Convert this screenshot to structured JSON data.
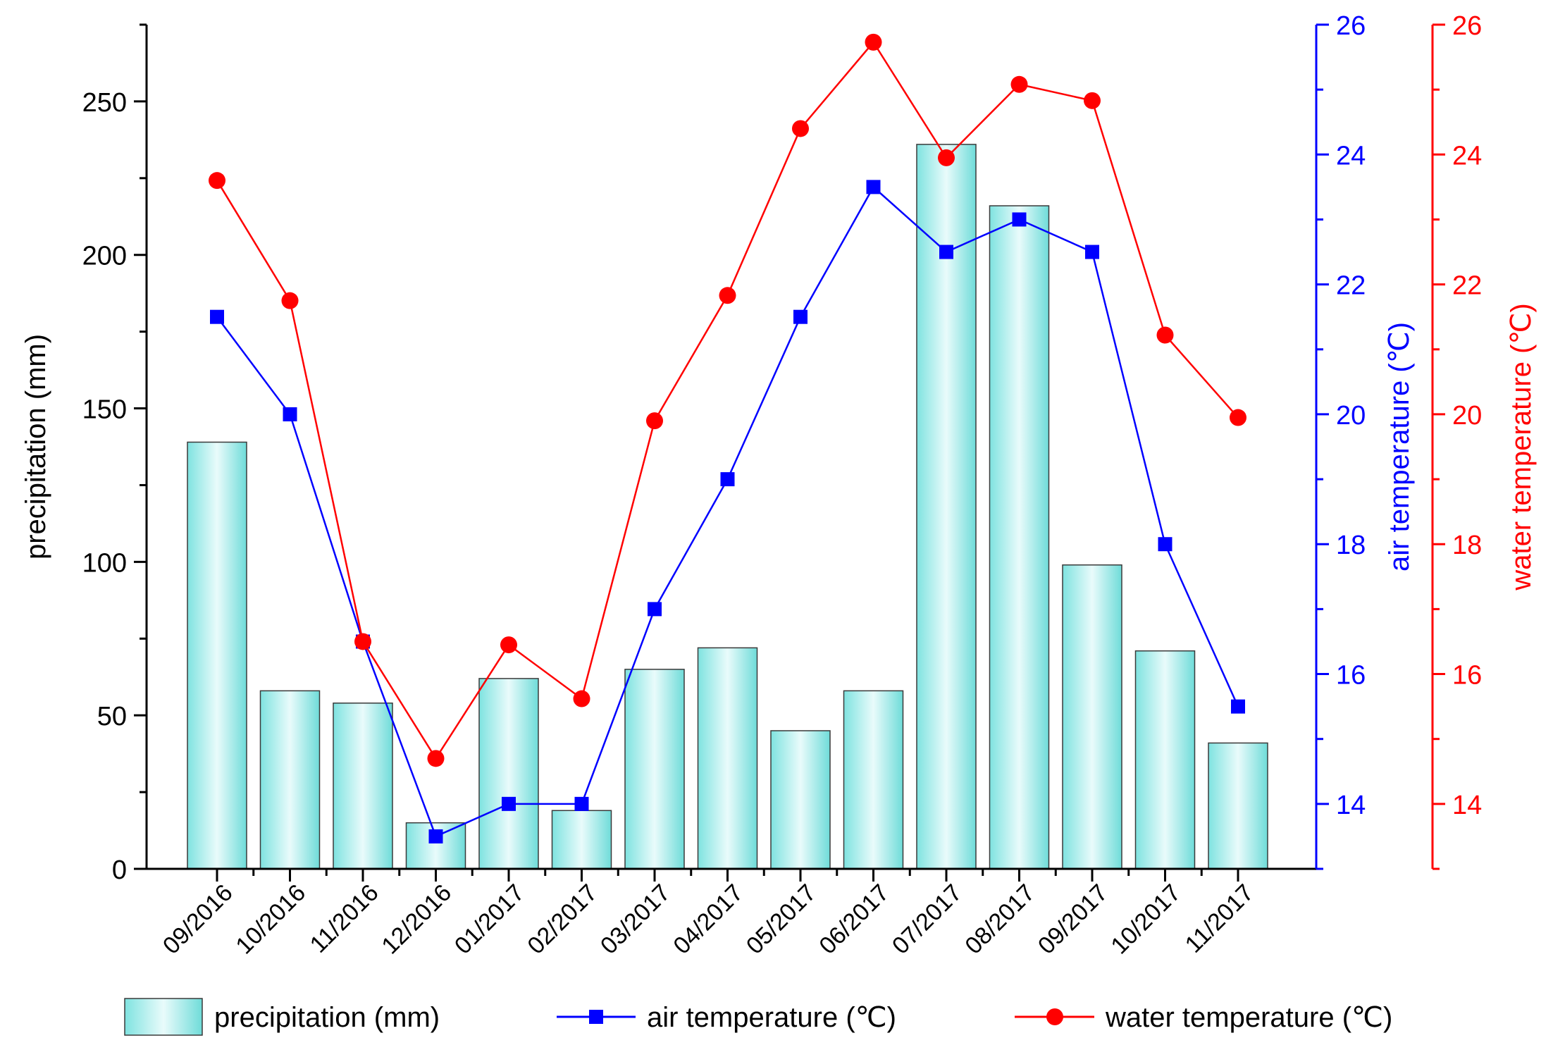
{
  "chart_data": {
    "type": "bar",
    "categories": [
      "09/2016",
      "10/2016",
      "11/2016",
      "12/2016",
      "01/2017",
      "02/2017",
      "03/2017",
      "04/2017",
      "05/2017",
      "06/2017",
      "07/2017",
      "08/2017",
      "09/2017",
      "10/2017",
      "11/2017"
    ],
    "series": [
      {
        "name": "precipitation (mm)",
        "kind": "bar",
        "axis": "left",
        "color": "#aef0ee",
        "values": [
          139,
          58,
          54,
          15,
          62,
          19,
          65,
          72,
          45,
          58,
          236,
          216,
          99,
          71,
          41
        ]
      },
      {
        "name": "air temperature (℃)",
        "kind": "line",
        "axis": "right1",
        "color": "#0000ff",
        "marker": "square",
        "values": [
          21.5,
          20.0,
          16.5,
          13.5,
          14.0,
          14.0,
          17.0,
          19.0,
          21.5,
          23.5,
          22.5,
          23.0,
          22.5,
          18.0,
          15.5
        ]
      },
      {
        "name": "water temperature (℃)",
        "kind": "line",
        "axis": "right2",
        "color": "#ff0000",
        "marker": "circle",
        "values": [
          23.6,
          21.75,
          16.5,
          14.7,
          16.45,
          15.62,
          19.9,
          21.83,
          24.4,
          25.73,
          23.95,
          25.08,
          24.83,
          21.22,
          19.95
        ]
      }
    ],
    "axes": {
      "left": {
        "label": "precipitation (mm)",
        "min": 0,
        "max": 275,
        "ticks": [
          0,
          50,
          100,
          150,
          200,
          250
        ],
        "color": "#000000"
      },
      "right1": {
        "label": "air temperature (℃)",
        "min": 13,
        "max": 26,
        "ticks": [
          14,
          16,
          18,
          20,
          22,
          24,
          26
        ],
        "color": "#0000ff"
      },
      "right2": {
        "label": "water temperature (℃)",
        "min": 13,
        "max": 26,
        "ticks": [
          14,
          16,
          18,
          20,
          22,
          24,
          26
        ],
        "color": "#ff0000"
      }
    },
    "legend": {
      "position": "bottom",
      "entries": [
        "precipitation (mm)",
        "air temperature (℃)",
        "water temperature (℃)"
      ]
    },
    "grid": false
  }
}
